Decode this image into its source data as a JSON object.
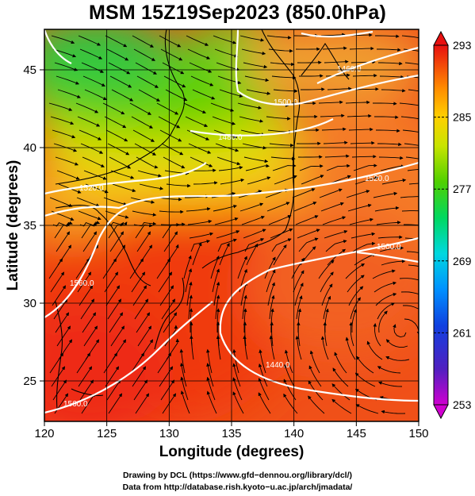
{
  "title": "MSM 15Z19Sep2023 (850.0hPa)",
  "axes": {
    "xlabel": "Longitude (degrees)",
    "ylabel": "Latitude  (degrees)",
    "x_ticks": [
      "120",
      "125",
      "130",
      "135",
      "140",
      "145",
      "150"
    ],
    "y_ticks": [
      "25",
      "30",
      "35",
      "40",
      "45"
    ]
  },
  "colorbar": {
    "labels": [
      "293",
      "285",
      "277",
      "269",
      "261",
      "253"
    ],
    "min": 253,
    "max": 293,
    "colors": [
      "#d000d0",
      "#3030c0",
      "#0070ff",
      "#00c0ff",
      "#00e070",
      "#40d000",
      "#c0e000",
      "#f0e000",
      "#ffa000",
      "#ff5000",
      "#e81000"
    ]
  },
  "contour_labels": [
    "1560.0",
    "1560.0",
    "1520.0",
    "1520.0",
    "1500.0",
    "1480.0",
    "1480.0",
    "1460.0",
    "1440.0",
    "1500.0",
    "1560.0"
  ],
  "chart_data": {
    "type": "heatmap",
    "title": "MSM 15Z19Sep2023 (850.0hPa)",
    "xlabel": "Longitude (degrees)",
    "ylabel": "Latitude  (degrees)",
    "xlim": [
      120,
      150
    ],
    "ylim": [
      22.4,
      47.6
    ],
    "grid": true,
    "variable_range": [
      253,
      293
    ],
    "overlays": [
      "streamlines",
      "geopotential height contours"
    ]
  },
  "footer": {
    "drawing_credit": "Drawing by DCL (https://www.gfd−dennou.org/library/dcl/)",
    "data_credit": "Data from http://database.rish.kyoto−u.ac.jp/arch/jmadata/"
  }
}
